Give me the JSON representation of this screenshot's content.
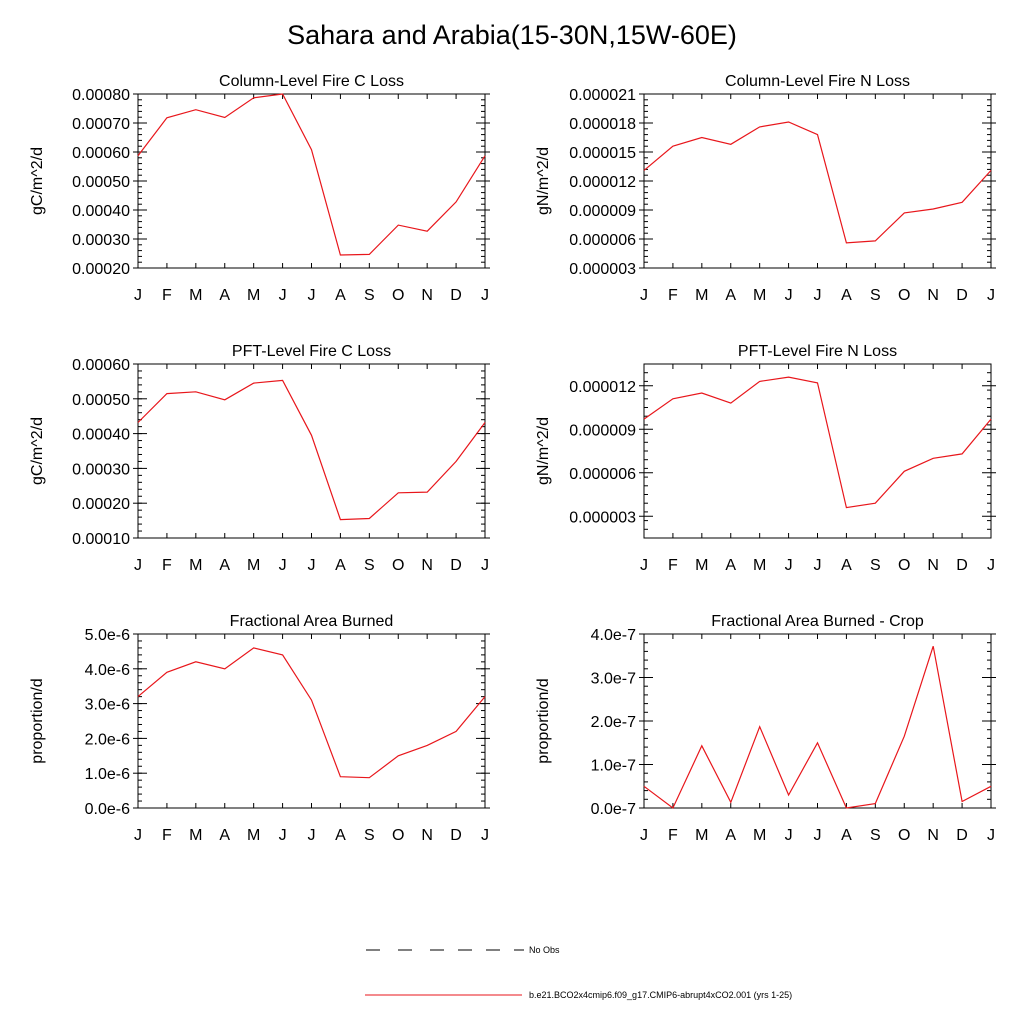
{
  "title": "Sahara and Arabia(15-30N,15W-60E)",
  "colors": {
    "series": "#e8161b",
    "axis": "#000000",
    "obs": "#000000"
  },
  "legend": {
    "obs_label": "No Obs",
    "model_label": "b.e21.BCO2x4cmip6.f09_g17.CMIP6-abrupt4xCO2.001 (yrs 1-25)"
  },
  "chart_data": [
    {
      "type": "line",
      "title": "Column-Level Fire C Loss",
      "ylabel": "gC/m^2/d",
      "categories": [
        "J",
        "F",
        "M",
        "A",
        "M",
        "J",
        "J",
        "A",
        "S",
        "O",
        "N",
        "D",
        "J"
      ],
      "yticks": [
        "0.00020",
        "0.00030",
        "0.00040",
        "0.00050",
        "0.00060",
        "0.00070",
        "0.00080"
      ],
      "ytick_values": [
        0.0002,
        0.0003,
        0.0004,
        0.0005,
        0.0006,
        0.0007,
        0.0008
      ],
      "ylim": [
        0.0002,
        0.0008
      ],
      "values": [
        0.000587,
        0.000718,
        0.000746,
        0.000719,
        0.000787,
        0.0008,
        0.000608,
        0.000245,
        0.000247,
        0.000348,
        0.000327,
        0.000428,
        0.000587
      ]
    },
    {
      "type": "line",
      "title": "Column-Level Fire N Loss",
      "ylabel": "gN/m^2/d",
      "categories": [
        "J",
        "F",
        "M",
        "A",
        "M",
        "J",
        "J",
        "A",
        "S",
        "O",
        "N",
        "D",
        "J"
      ],
      "yticks": [
        "0.000003",
        "0.000006",
        "0.000009",
        "0.000012",
        "0.000015",
        "0.000018",
        "0.000021"
      ],
      "ytick_values": [
        3e-06,
        6e-06,
        9e-06,
        1.2e-05,
        1.5e-05,
        1.8e-05,
        2.1e-05
      ],
      "ylim": [
        3e-06,
        2.1e-05
      ],
      "values": [
        1.31e-05,
        1.56e-05,
        1.65e-05,
        1.58e-05,
        1.76e-05,
        1.81e-05,
        1.68e-05,
        5.6e-06,
        5.8e-06,
        8.7e-06,
        9.1e-06,
        9.8e-06,
        1.31e-05
      ]
    },
    {
      "type": "line",
      "title": "PFT-Level Fire C Loss",
      "ylabel": "gC/m^2/d",
      "categories": [
        "J",
        "F",
        "M",
        "A",
        "M",
        "J",
        "J",
        "A",
        "S",
        "O",
        "N",
        "D",
        "J"
      ],
      "yticks": [
        "0.00010",
        "0.00020",
        "0.00030",
        "0.00040",
        "0.00050",
        "0.00060"
      ],
      "ytick_values": [
        0.0001,
        0.0002,
        0.0003,
        0.0004,
        0.0005,
        0.0006
      ],
      "ylim": [
        0.0001,
        0.0006
      ],
      "values": [
        0.000432,
        0.000515,
        0.00052,
        0.000497,
        0.000545,
        0.000553,
        0.000395,
        0.000153,
        0.000156,
        0.00023,
        0.000232,
        0.00032,
        0.000432
      ]
    },
    {
      "type": "line",
      "title": "PFT-Level Fire N Loss",
      "ylabel": "gN/m^2/d",
      "categories": [
        "J",
        "F",
        "M",
        "A",
        "M",
        "J",
        "J",
        "A",
        "S",
        "O",
        "N",
        "D",
        "J"
      ],
      "yticks": [
        "0.000003",
        "0.000006",
        "0.000009",
        "0.000012"
      ],
      "ytick_values": [
        3e-06,
        6e-06,
        9e-06,
        1.2e-05
      ],
      "ylim": [
        1.5e-06,
        1.35e-05
      ],
      "values": [
        9.7e-06,
        1.11e-05,
        1.15e-05,
        1.08e-05,
        1.23e-05,
        1.26e-05,
        1.22e-05,
        3.6e-06,
        3.9e-06,
        6.1e-06,
        7e-06,
        7.3e-06,
        9.7e-06
      ]
    },
    {
      "type": "line",
      "title": "Fractional Area Burned",
      "ylabel": "proportion/d",
      "categories": [
        "J",
        "F",
        "M",
        "A",
        "M",
        "J",
        "J",
        "A",
        "S",
        "O",
        "N",
        "D",
        "J"
      ],
      "yticks": [
        "0.0e-6",
        "1.0e-6",
        "2.0e-6",
        "3.0e-6",
        "4.0e-6",
        "5.0e-6"
      ],
      "ytick_values": [
        0,
        1e-06,
        2e-06,
        3e-06,
        4e-06,
        5e-06
      ],
      "ylim": [
        0,
        5e-06
      ],
      "values": [
        3.2e-06,
        3.9e-06,
        4.2e-06,
        4e-06,
        4.6e-06,
        4.4e-06,
        3.1e-06,
        9e-07,
        8.7e-07,
        1.5e-06,
        1.8e-06,
        2.2e-06,
        3.2e-06
      ]
    },
    {
      "type": "line",
      "title": "Fractional Area Burned - Crop",
      "ylabel": "proportion/d",
      "categories": [
        "J",
        "F",
        "M",
        "A",
        "M",
        "J",
        "J",
        "A",
        "S",
        "O",
        "N",
        "D",
        "J"
      ],
      "yticks": [
        "0.0e-7",
        "1.0e-7",
        "2.0e-7",
        "3.0e-7",
        "4.0e-7"
      ],
      "ytick_values": [
        0,
        1e-07,
        2e-07,
        3e-07,
        4e-07
      ],
      "ylim": [
        0,
        4e-07
      ],
      "values": [
        5e-08,
        0.0,
        1.43e-07,
        1.3e-08,
        1.87e-07,
        3e-08,
        1.5e-07,
        0.0,
        1e-08,
        1.65e-07,
        3.72e-07,
        1.5e-08,
        5e-08
      ]
    }
  ]
}
